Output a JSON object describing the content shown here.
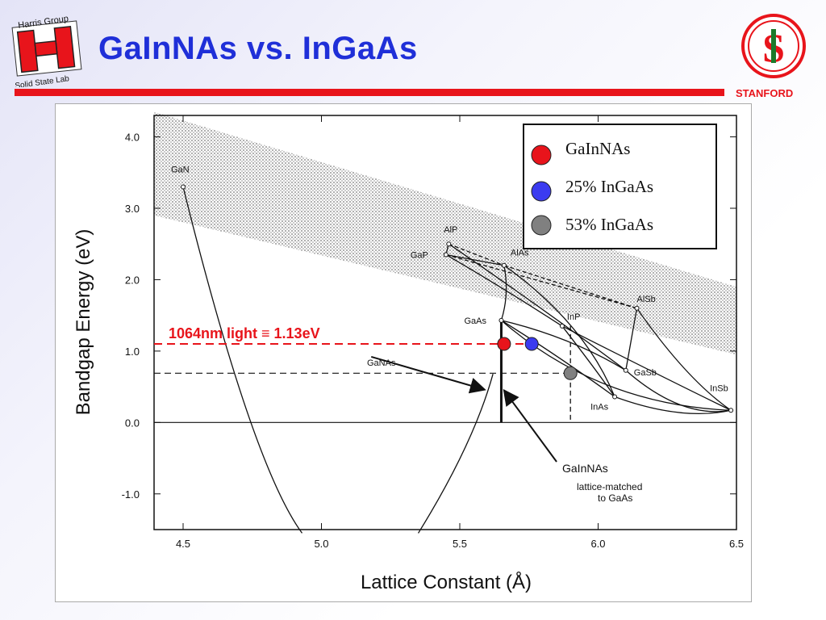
{
  "slide": {
    "title": "GaInNAs vs. InGaAs",
    "org": "STANFORD",
    "logo_left_top": "Harris Group",
    "logo_left_bottom": "Solid State Lab"
  },
  "colors": {
    "accent": "#1f2fd8",
    "rule": "#e8141b",
    "gainnas": "#e8141b",
    "ingaas25": "#3b3bf0",
    "ingaas53": "#808080"
  },
  "chart_data": {
    "type": "scatter",
    "xlabel": "Lattice Constant  (Å)",
    "ylabel": "Bandgap Energy  (eV)",
    "xlim": [
      4.4,
      6.5
    ],
    "ylim": [
      -1.5,
      4.3
    ],
    "xticks": [
      "4.5",
      "5.0",
      "5.5",
      "6.0",
      "6.5"
    ],
    "yticks": [
      "4.0",
      "3.0",
      "2.0",
      "1.0",
      "0.0",
      "-1.0"
    ],
    "materials": [
      {
        "name": "GaN",
        "x": 4.5,
        "y": 3.3
      },
      {
        "name": "AlP",
        "x": 5.46,
        "y": 2.5
      },
      {
        "name": "GaP",
        "x": 5.45,
        "y": 2.35
      },
      {
        "name": "AlAs",
        "x": 5.66,
        "y": 2.2
      },
      {
        "name": "GaAs",
        "x": 5.65,
        "y": 1.43
      },
      {
        "name": "InP",
        "x": 5.87,
        "y": 1.35
      },
      {
        "name": "AlSb",
        "x": 6.14,
        "y": 1.6
      },
      {
        "name": "GaSb",
        "x": 6.1,
        "y": 0.73
      },
      {
        "name": "InAs",
        "x": 6.06,
        "y": 0.36
      },
      {
        "name": "InSb",
        "x": 6.48,
        "y": 0.17
      }
    ],
    "annotations": [
      {
        "text": "GaNAs"
      },
      {
        "text": "GaInNAs"
      },
      {
        "text": "lattice-matched"
      },
      {
        "text": "to GaAs"
      },
      {
        "text": "1064nm light ≡ 1.13eV",
        "y": 1.1
      }
    ],
    "series": [
      {
        "name": "GaInNAs",
        "x": 5.66,
        "y": 1.1
      },
      {
        "name": "25% InGaAs",
        "x": 5.76,
        "y": 1.1
      },
      {
        "name": "53% InGaAs",
        "x": 5.9,
        "y": 0.69
      }
    ],
    "legend_position": "top-right",
    "grid": false
  }
}
